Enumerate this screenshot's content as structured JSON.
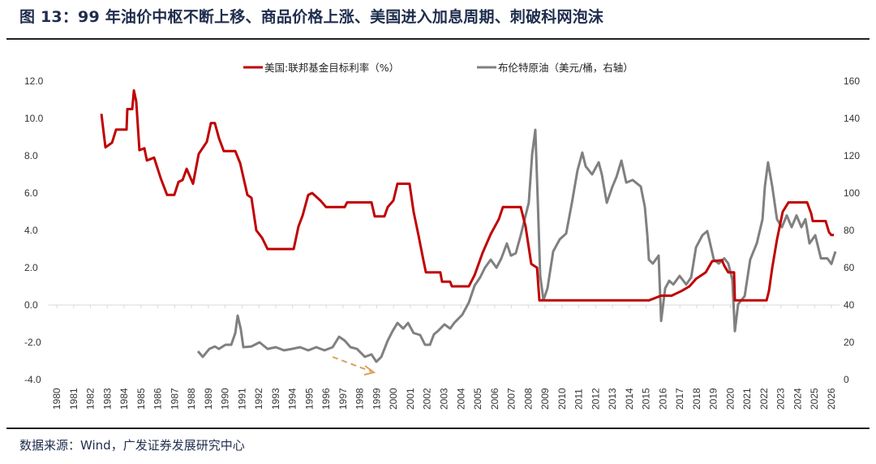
{
  "header": {
    "title": "图 13：99 年油价中枢不断上移、商品价格上涨、美国进入加息周期、刺破科网泡沫"
  },
  "footer": {
    "source": "数据来源：Wind，广发证券发展研究中心"
  },
  "chart_data": {
    "type": "line",
    "title": "",
    "xlabel": "",
    "ylabel": "",
    "xlim": [
      1979.5,
      2026.5
    ],
    "ylim_left": [
      -4,
      12
    ],
    "ylim_right": [
      0,
      160
    ],
    "x_tick_labels": [
      "1980",
      "1981",
      "1982",
      "1983",
      "1984",
      "1985",
      "1986",
      "1987",
      "1988",
      "1989",
      "1990",
      "1991",
      "1992",
      "1993",
      "1994",
      "1995",
      "1996",
      "1997",
      "1998",
      "1999",
      "2000",
      "2001",
      "2002",
      "2003",
      "2004",
      "2005",
      "2006",
      "2007",
      "2008",
      "2009",
      "2010",
      "2011",
      "2012",
      "2013",
      "2014",
      "2015",
      "2016",
      "2017",
      "2018",
      "2019",
      "2020",
      "2021",
      "2022",
      "2023",
      "2024",
      "2025",
      "2026"
    ],
    "y_left_tick_labels": [
      "12.0",
      "10.0",
      "8.0",
      "6.0",
      "4.0",
      "2.0",
      "0.0",
      "-2.0",
      "-4.0"
    ],
    "y_right_tick_labels": [
      "160",
      "140",
      "120",
      "100",
      "80",
      "60",
      "40",
      "20",
      "0"
    ],
    "grid": false,
    "legend_position": "top",
    "annotation": "downward dashed arrow near 1997-1999 oil lows",
    "series": [
      {
        "name": "美国:联邦基金目标利率（%）",
        "axis": "left",
        "color": "#c00000",
        "points": [
          [
            1982.65,
            10.25
          ],
          [
            1982.89,
            8.45
          ],
          [
            1983.28,
            8.7
          ],
          [
            1983.52,
            9.4
          ],
          [
            1984.14,
            9.4
          ],
          [
            1984.19,
            10.5
          ],
          [
            1984.48,
            10.5
          ],
          [
            1984.58,
            11.5
          ],
          [
            1984.72,
            10.9
          ],
          [
            1984.91,
            8.3
          ],
          [
            1985.2,
            8.4
          ],
          [
            1985.35,
            7.75
          ],
          [
            1985.78,
            7.9
          ],
          [
            1985.92,
            7.5
          ],
          [
            1986.17,
            6.8
          ],
          [
            1986.55,
            5.9
          ],
          [
            1986.98,
            5.9
          ],
          [
            1987.23,
            6.6
          ],
          [
            1987.47,
            6.7
          ],
          [
            1987.71,
            7.3
          ],
          [
            1988.09,
            6.5
          ],
          [
            1988.43,
            8.1
          ],
          [
            1988.91,
            8.75
          ],
          [
            1989.15,
            9.75
          ],
          [
            1989.39,
            9.75
          ],
          [
            1989.63,
            8.95
          ],
          [
            1989.92,
            8.25
          ],
          [
            1990.6,
            8.25
          ],
          [
            1990.89,
            7.6
          ],
          [
            1991.32,
            5.9
          ],
          [
            1991.56,
            5.75
          ],
          [
            1991.85,
            4.0
          ],
          [
            1992.19,
            3.6
          ],
          [
            1992.52,
            3.0
          ],
          [
            1994.07,
            3.0
          ],
          [
            1994.35,
            4.2
          ],
          [
            1994.6,
            4.8
          ],
          [
            1994.93,
            5.9
          ],
          [
            1995.17,
            6.0
          ],
          [
            1995.66,
            5.6
          ],
          [
            1995.99,
            5.25
          ],
          [
            1997.1,
            5.25
          ],
          [
            1997.24,
            5.5
          ],
          [
            1998.69,
            5.5
          ],
          [
            1998.88,
            4.75
          ],
          [
            1999.46,
            4.75
          ],
          [
            1999.65,
            5.25
          ],
          [
            1999.99,
            5.6
          ],
          [
            2000.23,
            6.5
          ],
          [
            2000.95,
            6.5
          ],
          [
            2001.19,
            5.0
          ],
          [
            2001.48,
            3.75
          ],
          [
            2001.77,
            2.4
          ],
          [
            2001.92,
            1.75
          ],
          [
            2002.78,
            1.75
          ],
          [
            2002.88,
            1.25
          ],
          [
            2003.36,
            1.25
          ],
          [
            2003.46,
            1.0
          ],
          [
            2004.47,
            1.0
          ],
          [
            2004.81,
            1.6
          ],
          [
            2005.29,
            2.8
          ],
          [
            2005.77,
            3.8
          ],
          [
            2006.25,
            4.6
          ],
          [
            2006.49,
            5.25
          ],
          [
            2007.55,
            5.25
          ],
          [
            2007.84,
            4.2
          ],
          [
            2008.18,
            2.2
          ],
          [
            2008.52,
            2.0
          ],
          [
            2008.66,
            0.25
          ],
          [
            2015.16,
            0.25
          ],
          [
            2015.89,
            0.5
          ],
          [
            2016.51,
            0.5
          ],
          [
            2017.09,
            0.75
          ],
          [
            2017.57,
            1.0
          ],
          [
            2017.96,
            1.4
          ],
          [
            2018.54,
            1.75
          ],
          [
            2018.92,
            2.35
          ],
          [
            2019.5,
            2.4
          ],
          [
            2019.64,
            2.1
          ],
          [
            2019.88,
            1.75
          ],
          [
            2020.22,
            1.75
          ],
          [
            2020.27,
            0.25
          ],
          [
            2022.15,
            0.25
          ],
          [
            2022.29,
            0.75
          ],
          [
            2022.49,
            2.0
          ],
          [
            2022.77,
            3.5
          ],
          [
            2023.11,
            5.0
          ],
          [
            2023.45,
            5.5
          ],
          [
            2024.56,
            5.5
          ],
          [
            2024.8,
            4.9
          ],
          [
            2024.89,
            4.5
          ],
          [
            2025.66,
            4.5
          ],
          [
            2025.86,
            3.9
          ],
          [
            2026.0,
            3.75
          ],
          [
            2026.15,
            3.75
          ]
        ]
      },
      {
        "name": "布伦特原油（美元/桶，右轴）",
        "axis": "right",
        "color": "#808080",
        "points": [
          [
            1988.38,
            15.2
          ],
          [
            1988.67,
            12.2
          ],
          [
            1989.06,
            16.5
          ],
          [
            1989.39,
            17.8
          ],
          [
            1989.63,
            16.5
          ],
          [
            1990.02,
            18.7
          ],
          [
            1990.36,
            18.7
          ],
          [
            1990.6,
            25
          ],
          [
            1990.74,
            34.3
          ],
          [
            1990.93,
            27
          ],
          [
            1991.08,
            17.4
          ],
          [
            1991.56,
            17.8
          ],
          [
            1992.04,
            20
          ],
          [
            1992.52,
            16.5
          ],
          [
            1993.01,
            17.4
          ],
          [
            1993.49,
            15.7
          ],
          [
            1993.97,
            16.5
          ],
          [
            1994.45,
            17.4
          ],
          [
            1994.93,
            15.7
          ],
          [
            1995.41,
            17.4
          ],
          [
            1995.9,
            15.7
          ],
          [
            1996.38,
            17.4
          ],
          [
            1996.76,
            23
          ],
          [
            1997.1,
            20.9
          ],
          [
            1997.44,
            17.4
          ],
          [
            1997.82,
            16.5
          ],
          [
            1998.3,
            12.2
          ],
          [
            1998.69,
            13.5
          ],
          [
            1998.98,
            9.6
          ],
          [
            1999.27,
            12.2
          ],
          [
            1999.65,
            20.9
          ],
          [
            1999.94,
            26
          ],
          [
            2000.23,
            30.4
          ],
          [
            2000.57,
            27.4
          ],
          [
            2000.86,
            30.4
          ],
          [
            2001.19,
            25
          ],
          [
            2001.58,
            23.9
          ],
          [
            2001.87,
            18.7
          ],
          [
            2002.16,
            18.7
          ],
          [
            2002.4,
            24.3
          ],
          [
            2002.64,
            26.1
          ],
          [
            2003.02,
            29.6
          ],
          [
            2003.36,
            27.4
          ],
          [
            2003.6,
            30.4
          ],
          [
            2004.08,
            34.8
          ],
          [
            2004.47,
            41.3
          ],
          [
            2004.81,
            50.4
          ],
          [
            2005.14,
            54.8
          ],
          [
            2005.43,
            60
          ],
          [
            2005.77,
            64.3
          ],
          [
            2006.11,
            60
          ],
          [
            2006.4,
            65
          ],
          [
            2006.73,
            73
          ],
          [
            2006.97,
            66.5
          ],
          [
            2007.26,
            67.8
          ],
          [
            2007.55,
            77.4
          ],
          [
            2007.84,
            88
          ],
          [
            2008.03,
            94.8
          ],
          [
            2008.23,
            120.9
          ],
          [
            2008.42,
            133.9
          ],
          [
            2008.57,
            94.8
          ],
          [
            2008.71,
            55.6
          ],
          [
            2008.9,
            42.6
          ],
          [
            2009.14,
            49
          ],
          [
            2009.48,
            68.7
          ],
          [
            2009.87,
            75.2
          ],
          [
            2010.25,
            78.3
          ],
          [
            2010.59,
            94.8
          ],
          [
            2010.92,
            112
          ],
          [
            2011.21,
            121.7
          ],
          [
            2011.41,
            114.3
          ],
          [
            2011.79,
            110
          ],
          [
            2012.18,
            116.5
          ],
          [
            2012.37,
            110
          ],
          [
            2012.66,
            94.8
          ],
          [
            2013.0,
            103.5
          ],
          [
            2013.24,
            108.7
          ],
          [
            2013.53,
            117.4
          ],
          [
            2013.82,
            105.6
          ],
          [
            2014.2,
            107
          ],
          [
            2014.68,
            103.5
          ],
          [
            2014.92,
            92.6
          ],
          [
            2015.07,
            77.4
          ],
          [
            2015.16,
            64.3
          ],
          [
            2015.4,
            62.2
          ],
          [
            2015.74,
            66.5
          ],
          [
            2015.89,
            31.5
          ],
          [
            2016.13,
            49
          ],
          [
            2016.37,
            53
          ],
          [
            2016.61,
            51
          ],
          [
            2016.99,
            55.6
          ],
          [
            2017.38,
            51
          ],
          [
            2017.67,
            54.8
          ],
          [
            2017.96,
            70.9
          ],
          [
            2018.34,
            77.4
          ],
          [
            2018.63,
            79.6
          ],
          [
            2019.02,
            64.3
          ],
          [
            2019.31,
            62.2
          ],
          [
            2019.64,
            65
          ],
          [
            2019.88,
            62.2
          ],
          [
            2020.12,
            53.5
          ],
          [
            2020.27,
            26
          ],
          [
            2020.46,
            40.4
          ],
          [
            2020.85,
            44.8
          ],
          [
            2021.18,
            64.3
          ],
          [
            2021.57,
            73
          ],
          [
            2021.91,
            86
          ],
          [
            2022.05,
            103.5
          ],
          [
            2022.24,
            116.5
          ],
          [
            2022.49,
            103.5
          ],
          [
            2022.77,
            86
          ],
          [
            2023.06,
            81.7
          ],
          [
            2023.35,
            88
          ],
          [
            2023.64,
            81.7
          ],
          [
            2023.93,
            88
          ],
          [
            2024.22,
            81.7
          ],
          [
            2024.46,
            86
          ],
          [
            2024.7,
            73
          ],
          [
            2025.04,
            77.4
          ],
          [
            2025.38,
            65
          ],
          [
            2025.76,
            65
          ],
          [
            2026.0,
            62
          ],
          [
            2026.24,
            68.7
          ]
        ]
      }
    ],
    "annotation_color": "#d9a05b"
  }
}
